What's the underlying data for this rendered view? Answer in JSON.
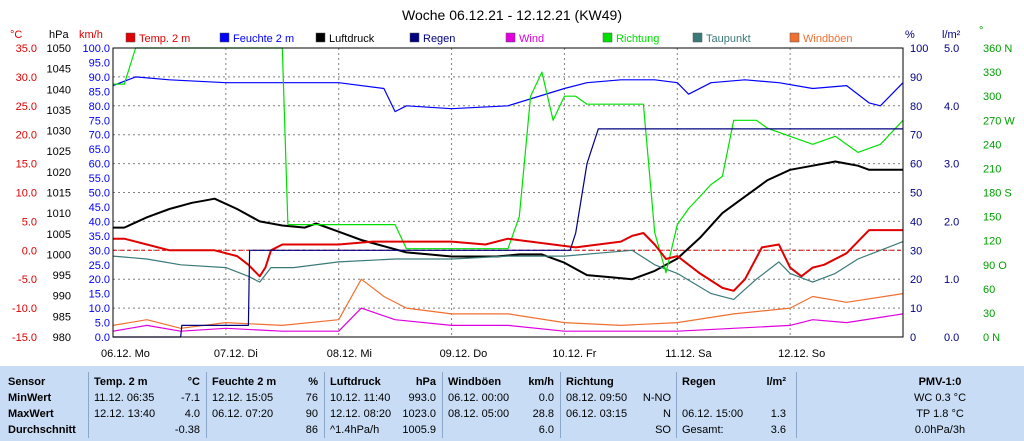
{
  "title": "Woche 06.12.21 - 12.12.21 (KW49)",
  "colors": {
    "temp": "#e00000",
    "feuchte": "#0000ff",
    "luftdruck": "#000000",
    "regen": "#000080",
    "wind": "#e000e0",
    "richtung": "#00e000",
    "taupunkt": "#3a7a7a",
    "windboeen": "#f07030",
    "grid": "#808080",
    "zero": "#e00000"
  },
  "units": {
    "temp": "°C",
    "hpa": "hPa",
    "kmh": "km/h",
    "pct": "%",
    "lm2": "l/m²",
    "deg": "°"
  },
  "legend": [
    {
      "key": "temp",
      "label": "Temp. 2 m"
    },
    {
      "key": "feuchte",
      "label": "Feuchte  2 m"
    },
    {
      "key": "luftdruck",
      "label": "Luftdruck"
    },
    {
      "key": "regen",
      "label": "Regen"
    },
    {
      "key": "wind",
      "label": "Wind"
    },
    {
      "key": "richtung",
      "label": "Richtung"
    },
    {
      "key": "taupunkt",
      "label": "Taupunkt"
    },
    {
      "key": "windboeen",
      "label": "Windböen"
    }
  ],
  "chart_data": {
    "type": "line",
    "title": "Woche 06.12.21 - 12.12.21 (KW49)",
    "x_range": [
      0,
      7
    ],
    "x_ticks": [
      "06.12.  Mo",
      "07.12.  Di",
      "08.12.  Mi",
      "09.12.  Do",
      "10.12.  Fr",
      "11.12.  Sa",
      "12.12.  So"
    ],
    "grid": true,
    "legend_position": "top",
    "axes": {
      "temp": {
        "range": [
          -15,
          35
        ],
        "ticks": [
          "35.0",
          "30.0",
          "25.0",
          "20.0",
          "15.0",
          "10.0",
          "5.0",
          "0.0",
          "-5.0",
          "-10.0",
          "-15.0"
        ]
      },
      "hpa": {
        "range": [
          980,
          1050
        ],
        "ticks": [
          "1050",
          "1045",
          "1040",
          "1035",
          "1030",
          "1025",
          "1020",
          "1015",
          "1010",
          "1005",
          "1000",
          "995",
          "990",
          "985",
          "980"
        ]
      },
      "kmh": {
        "range": [
          0,
          100
        ],
        "ticks": [
          "100.0",
          "95.0",
          "90.0",
          "85.0",
          "80.0",
          "75.0",
          "70.0",
          "65.0",
          "60.0",
          "55.0",
          "50.0",
          "45.0",
          "40.0",
          "35.0",
          "30.0",
          "25.0",
          "20.0",
          "15.0",
          "10.0",
          "5.0",
          "0.0"
        ]
      },
      "pct": {
        "range": [
          0,
          100
        ],
        "ticks": [
          "100",
          "90",
          "80",
          "70",
          "60",
          "50",
          "40",
          "30",
          "20",
          "10",
          "0"
        ]
      },
      "lm2": {
        "range": [
          0,
          5
        ],
        "ticks": [
          "5.0",
          "4.0",
          "3.0",
          "2.0",
          "1.0",
          "0.0"
        ]
      },
      "deg": {
        "range": [
          0,
          360
        ],
        "ticks": [
          "360 N",
          "330",
          "300",
          "270 W",
          "240",
          "210",
          "180 S",
          "150",
          "120",
          "90 O",
          "60",
          "30",
          "0 N"
        ]
      }
    },
    "series": [
      {
        "name": "Temp. 2 m",
        "axis": "temp",
        "x": [
          0,
          0.1,
          0.3,
          0.5,
          0.7,
          0.9,
          1.1,
          1.2,
          1.3,
          1.35,
          1.4,
          1.5,
          1.8,
          2.0,
          2.3,
          2.6,
          3.0,
          3.3,
          3.5,
          3.7,
          3.9,
          4.1,
          4.3,
          4.5,
          4.6,
          4.7,
          4.8,
          4.9,
          5.0,
          5.2,
          5.4,
          5.5,
          5.6,
          5.75,
          5.9,
          6.0,
          6.1,
          6.2,
          6.3,
          6.5,
          6.7,
          6.8,
          7.0
        ],
        "y": [
          2.0,
          2.0,
          1.0,
          0.0,
          0.0,
          0.0,
          -1.0,
          -2.5,
          -4.5,
          -3.0,
          0.0,
          1.0,
          1.0,
          1.0,
          1.5,
          1.5,
          1.5,
          1.0,
          2.0,
          1.5,
          1.0,
          0.5,
          1.0,
          1.5,
          2.5,
          3.0,
          1.0,
          -1.5,
          -1.0,
          -4.0,
          -6.5,
          -7.0,
          -5.0,
          0.5,
          1.0,
          -3.0,
          -4.5,
          -3.0,
          -2.5,
          -0.5,
          3.5,
          3.5,
          3.5
        ]
      },
      {
        "name": "Feuchte  2 m",
        "axis": "pct",
        "x": [
          0,
          0.2,
          0.5,
          1.0,
          1.5,
          2.0,
          2.4,
          2.5,
          2.6,
          3.0,
          3.5,
          4.0,
          4.2,
          4.5,
          4.8,
          5.0,
          5.1,
          5.3,
          5.6,
          5.9,
          6.2,
          6.5,
          6.7,
          6.8,
          7.0
        ],
        "y": [
          87,
          90,
          89,
          88,
          88,
          88,
          86,
          78,
          80,
          79,
          80,
          86,
          88,
          89,
          89,
          88,
          84,
          88,
          89,
          88,
          86,
          87,
          81,
          80,
          88
        ]
      },
      {
        "name": "Luftdruck",
        "axis": "hpa",
        "x": [
          0,
          0.1,
          0.3,
          0.5,
          0.7,
          0.8,
          0.9,
          1.1,
          1.3,
          1.5,
          1.7,
          1.8,
          2.0,
          2.2,
          2.4,
          2.6,
          2.8,
          3.0,
          3.2,
          3.4,
          3.6,
          3.8,
          4.0,
          4.2,
          4.4,
          4.6,
          4.8,
          5.0,
          5.2,
          5.4,
          5.6,
          5.8,
          6.0,
          6.2,
          6.4,
          6.5,
          6.6,
          6.7,
          6.8,
          7.0
        ],
        "y": [
          1006.5,
          1006.5,
          1009,
          1011,
          1012.5,
          1013,
          1013.5,
          1011,
          1008,
          1007,
          1006.5,
          1007.5,
          1005.5,
          1003.5,
          1002,
          1000.5,
          1000,
          999.5,
          999.5,
          999.5,
          1000,
          1000,
          998,
          995,
          994.5,
          994,
          996,
          999,
          1004,
          1010,
          1014,
          1018,
          1020.5,
          1021.5,
          1022.5,
          1022,
          1021.5,
          1020.5,
          1020.5,
          1020.5
        ]
      },
      {
        "name": "Regen",
        "axis": "lm2",
        "x": [
          0,
          0.6,
          0.61,
          0.62,
          1.2,
          1.21,
          4.0,
          4.05,
          4.1,
          4.2,
          4.3,
          4.4,
          7.0
        ],
        "y": [
          0,
          0,
          0.2,
          0.2,
          0.2,
          1.5,
          1.5,
          1.5,
          1.8,
          3.0,
          3.6,
          3.6,
          3.6
        ]
      },
      {
        "name": "Wind",
        "axis": "kmh",
        "x": [
          0,
          0.3,
          0.6,
          1.0,
          1.5,
          2.0,
          2.2,
          2.5,
          3.0,
          3.5,
          4.0,
          4.5,
          5.0,
          5.5,
          6.0,
          6.2,
          6.5,
          7.0
        ],
        "y": [
          2,
          4,
          2,
          3,
          2,
          2,
          10,
          6,
          4,
          4,
          2,
          2,
          2,
          3,
          4,
          6,
          5,
          8
        ]
      },
      {
        "name": "Richtung",
        "axis": "deg",
        "x": [
          0,
          0.1,
          0.2,
          1.5,
          1.55,
          2.0,
          2.4,
          2.5,
          2.6,
          3.0,
          3.5,
          3.6,
          3.7,
          3.8,
          3.9,
          4.0,
          4.1,
          4.2,
          4.3,
          4.4,
          4.5,
          4.6,
          4.7,
          4.8,
          4.9,
          5.0,
          5.1,
          5.3,
          5.4,
          5.5,
          5.6,
          5.7,
          5.8,
          6.0,
          6.2,
          6.4,
          6.6,
          6.8,
          7.0
        ],
        "y": [
          315,
          315,
          360,
          360,
          140,
          140,
          140,
          140,
          110,
          110,
          110,
          150,
          300,
          330,
          270,
          300,
          300,
          290,
          290,
          290,
          290,
          290,
          290,
          130,
          80,
          140,
          160,
          190,
          200,
          270,
          270,
          270,
          260,
          250,
          240,
          250,
          230,
          240,
          270
        ]
      },
      {
        "name": "Taupunkt",
        "axis": "temp",
        "x": [
          0,
          0.3,
          0.6,
          1.0,
          1.2,
          1.3,
          1.4,
          1.6,
          2.0,
          2.5,
          3.0,
          3.5,
          4.0,
          4.3,
          4.6,
          4.8,
          5.0,
          5.3,
          5.5,
          5.7,
          5.9,
          6.0,
          6.2,
          6.4,
          6.6,
          6.8,
          7.0
        ],
        "y": [
          -1.0,
          -1.5,
          -2.5,
          -3.0,
          -4.5,
          -5.5,
          -3.0,
          -3.0,
          -2.0,
          -1.5,
          -1.5,
          -1.0,
          -1.0,
          -0.5,
          0.0,
          -2.5,
          -4.0,
          -7.5,
          -8.5,
          -5.0,
          -2.0,
          -4.0,
          -5.5,
          -4.0,
          -1.5,
          0.0,
          1.5
        ]
      },
      {
        "name": "Windböen",
        "axis": "kmh",
        "x": [
          0,
          0.3,
          0.6,
          1.0,
          1.5,
          2.0,
          2.2,
          2.4,
          2.6,
          3.0,
          3.5,
          4.0,
          4.5,
          5.0,
          5.5,
          6.0,
          6.2,
          6.5,
          7.0
        ],
        "y": [
          4,
          6,
          3,
          5,
          4,
          6,
          20,
          14,
          10,
          8,
          8,
          5,
          4,
          5,
          8,
          10,
          14,
          12,
          15
        ]
      }
    ]
  },
  "table": {
    "headers": [
      {
        "label": "Sensor",
        "unit": ""
      },
      {
        "label": "Temp. 2 m",
        "unit": "°C"
      },
      {
        "label": "Feuchte  2 m",
        "unit": "%"
      },
      {
        "label": "Luftdruck",
        "unit": "hPa"
      },
      {
        "label": "Windböen",
        "unit": "km/h"
      },
      {
        "label": "Richtung",
        "unit": ""
      },
      {
        "label": "Regen",
        "unit": "l/m²"
      },
      {
        "label": "PMV-1:0",
        "unit": ""
      }
    ],
    "rows": [
      {
        "label": "MinWert",
        "temp": [
          "11.12.  06:35",
          "-7.1"
        ],
        "feuchte": [
          "12.12.  15:05",
          "76"
        ],
        "druck": [
          "10.12.  11:40",
          "993.0"
        ],
        "boeen": [
          "06.12.  00:00",
          "0.0"
        ],
        "richtung": [
          "08.12.  09:50",
          "N-NO"
        ],
        "regen": [
          "",
          ""
        ],
        "pmv": "WC 0.3 °C"
      },
      {
        "label": "MaxWert",
        "temp": [
          "12.12.  13:40",
          "4.0"
        ],
        "feuchte": [
          "06.12.  07:20",
          "90"
        ],
        "druck": [
          "12.12.  08:20",
          "1023.0"
        ],
        "boeen": [
          "08.12.  05:00",
          "28.8"
        ],
        "richtung": [
          "06.12.  03:15",
          "N"
        ],
        "regen": [
          "06.12.  15:00",
          "1.3"
        ],
        "pmv": "TP 1.8 °C"
      },
      {
        "label": "Durchschnitt",
        "temp": [
          "",
          "-0.38"
        ],
        "feuchte": [
          "",
          "86"
        ],
        "druck": [
          "^1.4hPa/h",
          "1005.9"
        ],
        "boeen": [
          "",
          "6.0"
        ],
        "richtung": [
          "",
          "SO"
        ],
        "regen": [
          "Gesamt:",
          "3.6"
        ],
        "pmv": "0.0hPa/3h"
      }
    ]
  }
}
